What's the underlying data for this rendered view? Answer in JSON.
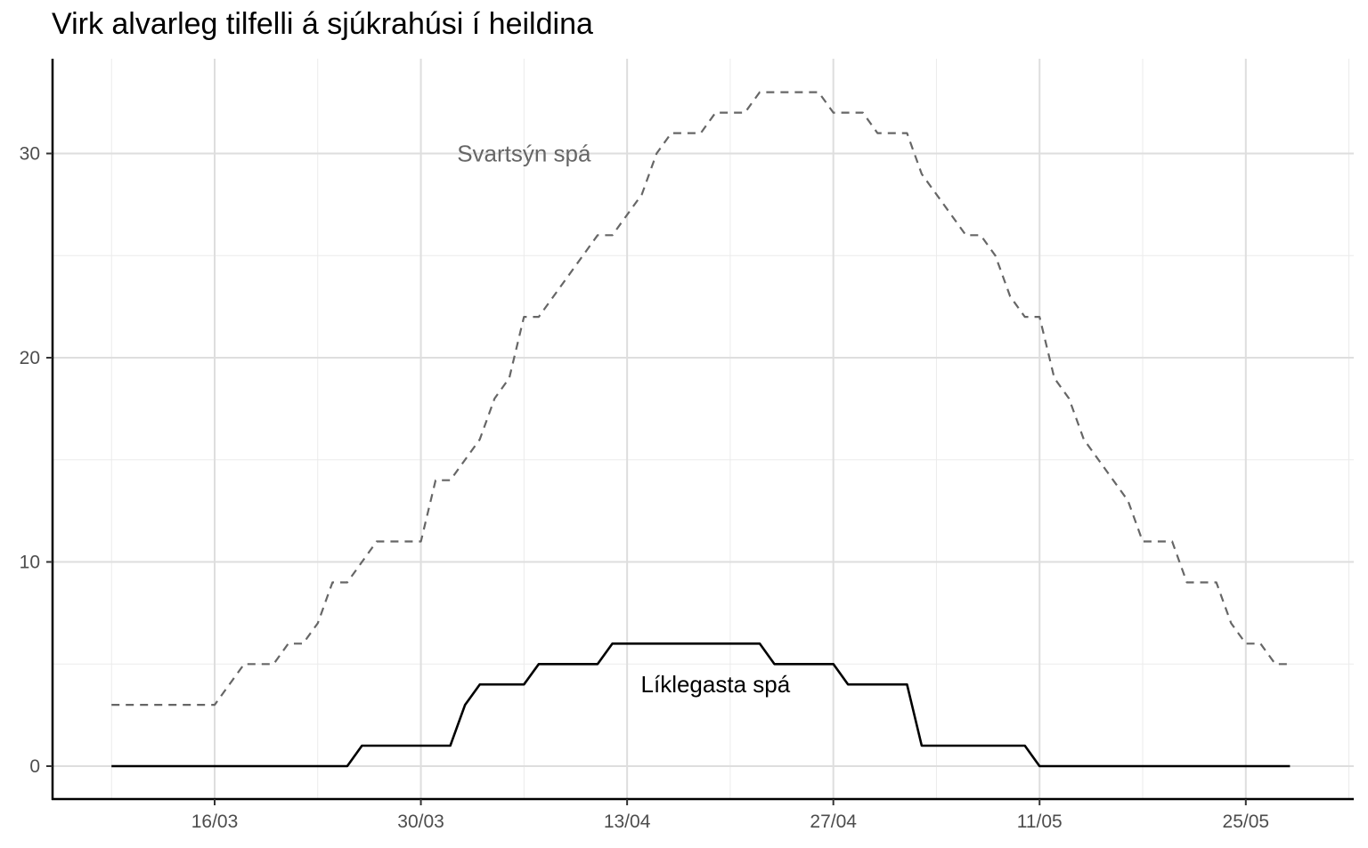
{
  "chart_data": {
    "type": "line",
    "title": "Virk alvarleg tilfelli á sjúkrahúsi í heildina",
    "xlabel": "",
    "ylabel": "",
    "x_axis": {
      "type": "date",
      "start": "2020-03-09",
      "end": "2020-05-29",
      "ticks": [
        "2020-03-16",
        "2020-03-30",
        "2020-04-13",
        "2020-04-27",
        "2020-05-11",
        "2020-05-25"
      ],
      "tick_labels": [
        "16/03",
        "30/03",
        "13/04",
        "27/04",
        "11/05",
        "25/05"
      ]
    },
    "y_axis": {
      "range": [
        0,
        33
      ],
      "ticks": [
        0,
        10,
        20,
        30
      ]
    },
    "grid": true,
    "legend": "none",
    "series": [
      {
        "name": "Svartsýn spá",
        "style": "dashed",
        "color": "#666666",
        "points": [
          [
            "2020-03-09",
            3
          ],
          [
            "2020-03-16",
            3
          ],
          [
            "2020-03-18",
            5
          ],
          [
            "2020-03-20",
            5
          ],
          [
            "2020-03-21",
            6
          ],
          [
            "2020-03-22",
            6
          ],
          [
            "2020-03-23",
            7
          ],
          [
            "2020-03-24",
            9
          ],
          [
            "2020-03-25",
            9
          ],
          [
            "2020-03-27",
            11
          ],
          [
            "2020-03-30",
            11
          ],
          [
            "2020-03-31",
            14
          ],
          [
            "2020-04-01",
            14
          ],
          [
            "2020-04-03",
            16
          ],
          [
            "2020-04-04",
            18
          ],
          [
            "2020-04-05",
            19
          ],
          [
            "2020-04-06",
            22
          ],
          [
            "2020-04-07",
            22
          ],
          [
            "2020-04-11",
            26
          ],
          [
            "2020-04-12",
            26
          ],
          [
            "2020-04-14",
            28
          ],
          [
            "2020-04-15",
            30
          ],
          [
            "2020-04-16",
            31
          ],
          [
            "2020-04-18",
            31
          ],
          [
            "2020-04-19",
            32
          ],
          [
            "2020-04-21",
            32
          ],
          [
            "2020-04-22",
            33
          ],
          [
            "2020-04-26",
            33
          ],
          [
            "2020-04-27",
            32
          ],
          [
            "2020-04-29",
            32
          ],
          [
            "2020-04-30",
            31
          ],
          [
            "2020-05-02",
            31
          ],
          [
            "2020-05-03",
            29
          ],
          [
            "2020-05-05",
            27
          ],
          [
            "2020-05-06",
            26
          ],
          [
            "2020-05-07",
            26
          ],
          [
            "2020-05-08",
            25
          ],
          [
            "2020-05-09",
            23
          ],
          [
            "2020-05-10",
            22
          ],
          [
            "2020-05-11",
            22
          ],
          [
            "2020-05-12",
            19
          ],
          [
            "2020-05-13",
            18
          ],
          [
            "2020-05-14",
            16
          ],
          [
            "2020-05-17",
            13
          ],
          [
            "2020-05-18",
            11
          ],
          [
            "2020-05-20",
            11
          ],
          [
            "2020-05-21",
            9
          ],
          [
            "2020-05-22",
            9
          ],
          [
            "2020-05-23",
            9
          ],
          [
            "2020-05-24",
            7
          ],
          [
            "2020-05-25",
            6
          ],
          [
            "2020-05-26",
            6
          ],
          [
            "2020-05-27",
            5
          ],
          [
            "2020-05-28",
            5
          ]
        ]
      },
      {
        "name": "Líklegasta spá",
        "style": "solid",
        "color": "#000000",
        "points": [
          [
            "2020-03-09",
            0
          ],
          [
            "2020-03-25",
            0
          ],
          [
            "2020-03-26",
            1
          ],
          [
            "2020-04-01",
            1
          ],
          [
            "2020-04-02",
            3
          ],
          [
            "2020-04-03",
            4
          ],
          [
            "2020-04-06",
            4
          ],
          [
            "2020-04-07",
            5
          ],
          [
            "2020-04-11",
            5
          ],
          [
            "2020-04-12",
            6
          ],
          [
            "2020-04-22",
            6
          ],
          [
            "2020-04-23",
            5
          ],
          [
            "2020-04-27",
            5
          ],
          [
            "2020-04-28",
            4
          ],
          [
            "2020-05-02",
            4
          ],
          [
            "2020-05-03",
            1
          ],
          [
            "2020-05-10",
            1
          ],
          [
            "2020-05-11",
            0
          ],
          [
            "2020-05-28",
            0
          ]
        ]
      }
    ],
    "annotations": [
      {
        "text": "Svartsýn spá",
        "x": "2020-04-06",
        "y": 30,
        "color": "#666666"
      },
      {
        "text": "Líklegasta spá",
        "x": "2020-04-19",
        "y": 4,
        "color": "#000000"
      }
    ]
  }
}
